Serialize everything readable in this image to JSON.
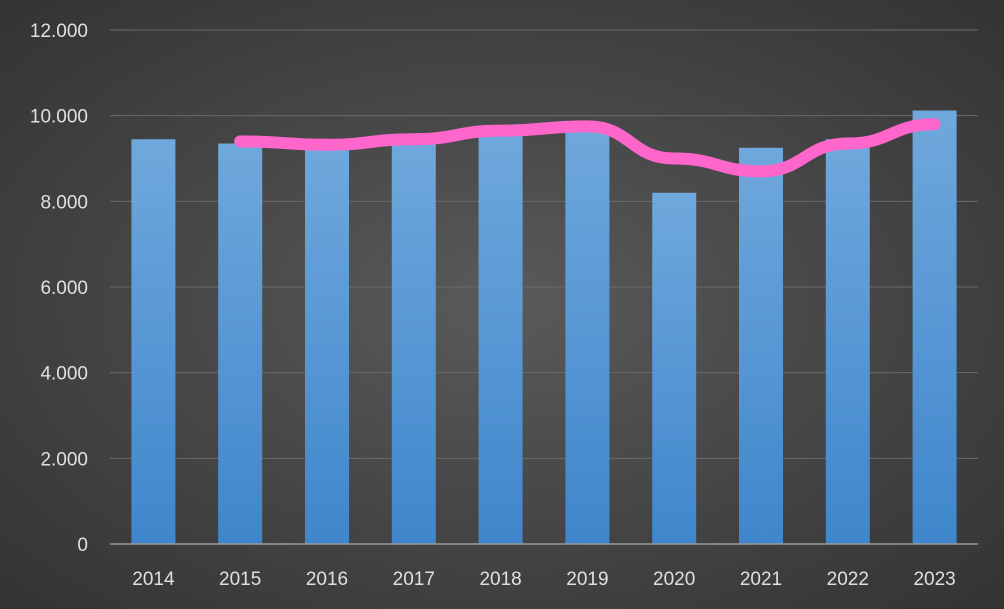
{
  "chart_data": {
    "type": "bar",
    "categories": [
      "2014",
      "2015",
      "2016",
      "2017",
      "2018",
      "2019",
      "2020",
      "2021",
      "2022",
      "2023"
    ],
    "series": [
      {
        "type": "bar",
        "values": [
          9450,
          9350,
          9300,
          9400,
          9600,
          9750,
          8200,
          9250,
          9450,
          10120
        ],
        "color": "#5b9bd5"
      },
      {
        "type": "line",
        "values": [
          null,
          9400,
          9320,
          9450,
          9650,
          9750,
          9000,
          8700,
          9350,
          9800
        ],
        "color": "#ff66cc"
      }
    ],
    "ylim": [
      0,
      12000
    ],
    "yticks": [
      0,
      2000,
      4000,
      6000,
      8000,
      10000,
      12000
    ],
    "ytick_labels": [
      "0",
      "2.000",
      "4.000",
      "6.000",
      "8.000",
      "10.000",
      "12.000"
    ],
    "title": "",
    "xlabel": "",
    "ylabel": "",
    "grid": true,
    "legend": "none"
  }
}
